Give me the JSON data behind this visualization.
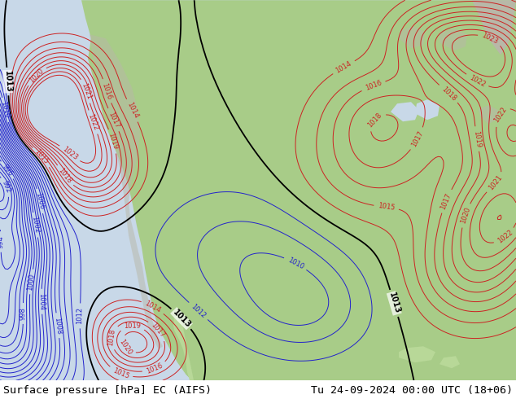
{
  "title_left": "Surface pressure [hPa] EC (AIFS)",
  "title_right": "Tu 24-09-2024 00:00 UTC (18+06)",
  "title_fontsize": 9.5,
  "title_color": "#000000",
  "background_color": "#ffffff",
  "fig_width": 6.34,
  "fig_height": 4.9,
  "dpi": 100,
  "land_green": "#a8cc88",
  "land_green2": "#b8d898",
  "land_gray": "#b8b8a8",
  "ocean_color": "#c8d8e8",
  "bottom_bar_color": "#cccccc",
  "contour_blue": "#2222cc",
  "contour_red": "#cc2222",
  "contour_black": "#000000",
  "label_fontsize": 6.0,
  "label_fontsize_black": 7.0
}
